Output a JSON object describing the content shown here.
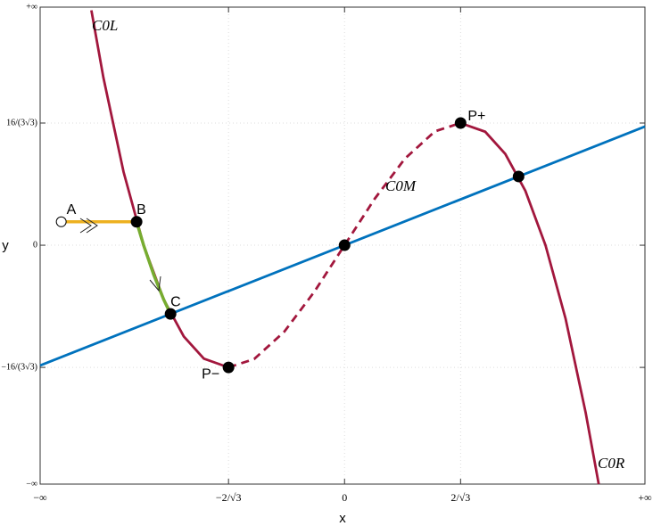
{
  "chart_data": {
    "type": "line",
    "x_label": "x",
    "y_label": "y",
    "xlim": [
      -3.03,
      2.99
    ],
    "ylim": [
      -6.02,
      6.0
    ],
    "xticks": [
      {
        "value": -3.03,
        "label": "−∞"
      },
      {
        "value": -1.155,
        "label": "−2/√3"
      },
      0,
      {
        "value": 1.155,
        "label": "2/√3"
      },
      {
        "value": 2.99,
        "label": "+∞"
      }
    ],
    "yticks": [
      {
        "value": -6.02,
        "label": "−∞"
      },
      {
        "value": -3.079,
        "label": "−16/(3√3)"
      },
      0,
      {
        "value": 3.079,
        "label": "16/(3√3)"
      },
      {
        "value": 6.0,
        "label": "+∞"
      }
    ],
    "grid": true,
    "series": [
      {
        "name": "C0L",
        "color": "#a2173d",
        "dashed": false,
        "x": [
          -2.52,
          -2.4,
          -2.2,
          -2.0,
          -1.8,
          -1.6,
          -1.4,
          -1.155
        ],
        "values": [
          5.92,
          4.22,
          1.85,
          0,
          -1.37,
          -2.3,
          -2.86,
          -3.079
        ]
      },
      {
        "name": "C0M",
        "color": "#a2173d",
        "dashed": true,
        "x": [
          -1.155,
          -0.9,
          -0.6,
          -0.3,
          0,
          0.3,
          0.6,
          0.9,
          1.155
        ],
        "values": [
          -3.079,
          -2.87,
          -2.18,
          -1.17,
          0,
          1.17,
          2.18,
          2.87,
          3.079
        ]
      },
      {
        "name": "C0R",
        "color": "#a2173d",
        "dashed": false,
        "x": [
          1.155,
          1.4,
          1.6,
          1.8,
          2.0,
          2.2,
          2.4,
          2.53
        ],
        "values": [
          3.079,
          2.86,
          2.3,
          1.37,
          0,
          -1.85,
          -4.22,
          -6.02
        ]
      },
      {
        "color": "#0072bd",
        "dashed": false,
        "x": [
          -3.03,
          2.99
        ],
        "values": [
          -3.03,
          2.99
        ]
      },
      {
        "color": "#77ac30",
        "dashed": false,
        "x": [
          -2.07,
          -2.0,
          -1.9,
          -1.8,
          -1.732
        ],
        "values": [
          0.59,
          0,
          -0.74,
          -1.37,
          -1.732
        ]
      },
      {
        "color": "#edb120",
        "dashed": false,
        "x": [
          -2.82,
          -2.07
        ],
        "values": [
          0.59,
          0.59
        ]
      }
    ],
    "points": [
      {
        "label": "A",
        "x": -2.82,
        "y": 0.59,
        "hollow": true
      },
      {
        "label": "B",
        "x": -2.07,
        "y": 0.59,
        "hollow": false
      },
      {
        "label": "C",
        "x": -1.732,
        "y": -1.732,
        "hollow": false
      },
      {
        "label": "P−",
        "x": -1.155,
        "y": -3.079,
        "hollow": false
      },
      {
        "x": 0,
        "y": 0,
        "hollow": false
      },
      {
        "label": "P+",
        "x": 1.155,
        "y": 3.079,
        "hollow": false
      },
      {
        "x": 1.732,
        "y": 1.732,
        "hollow": false
      }
    ]
  }
}
